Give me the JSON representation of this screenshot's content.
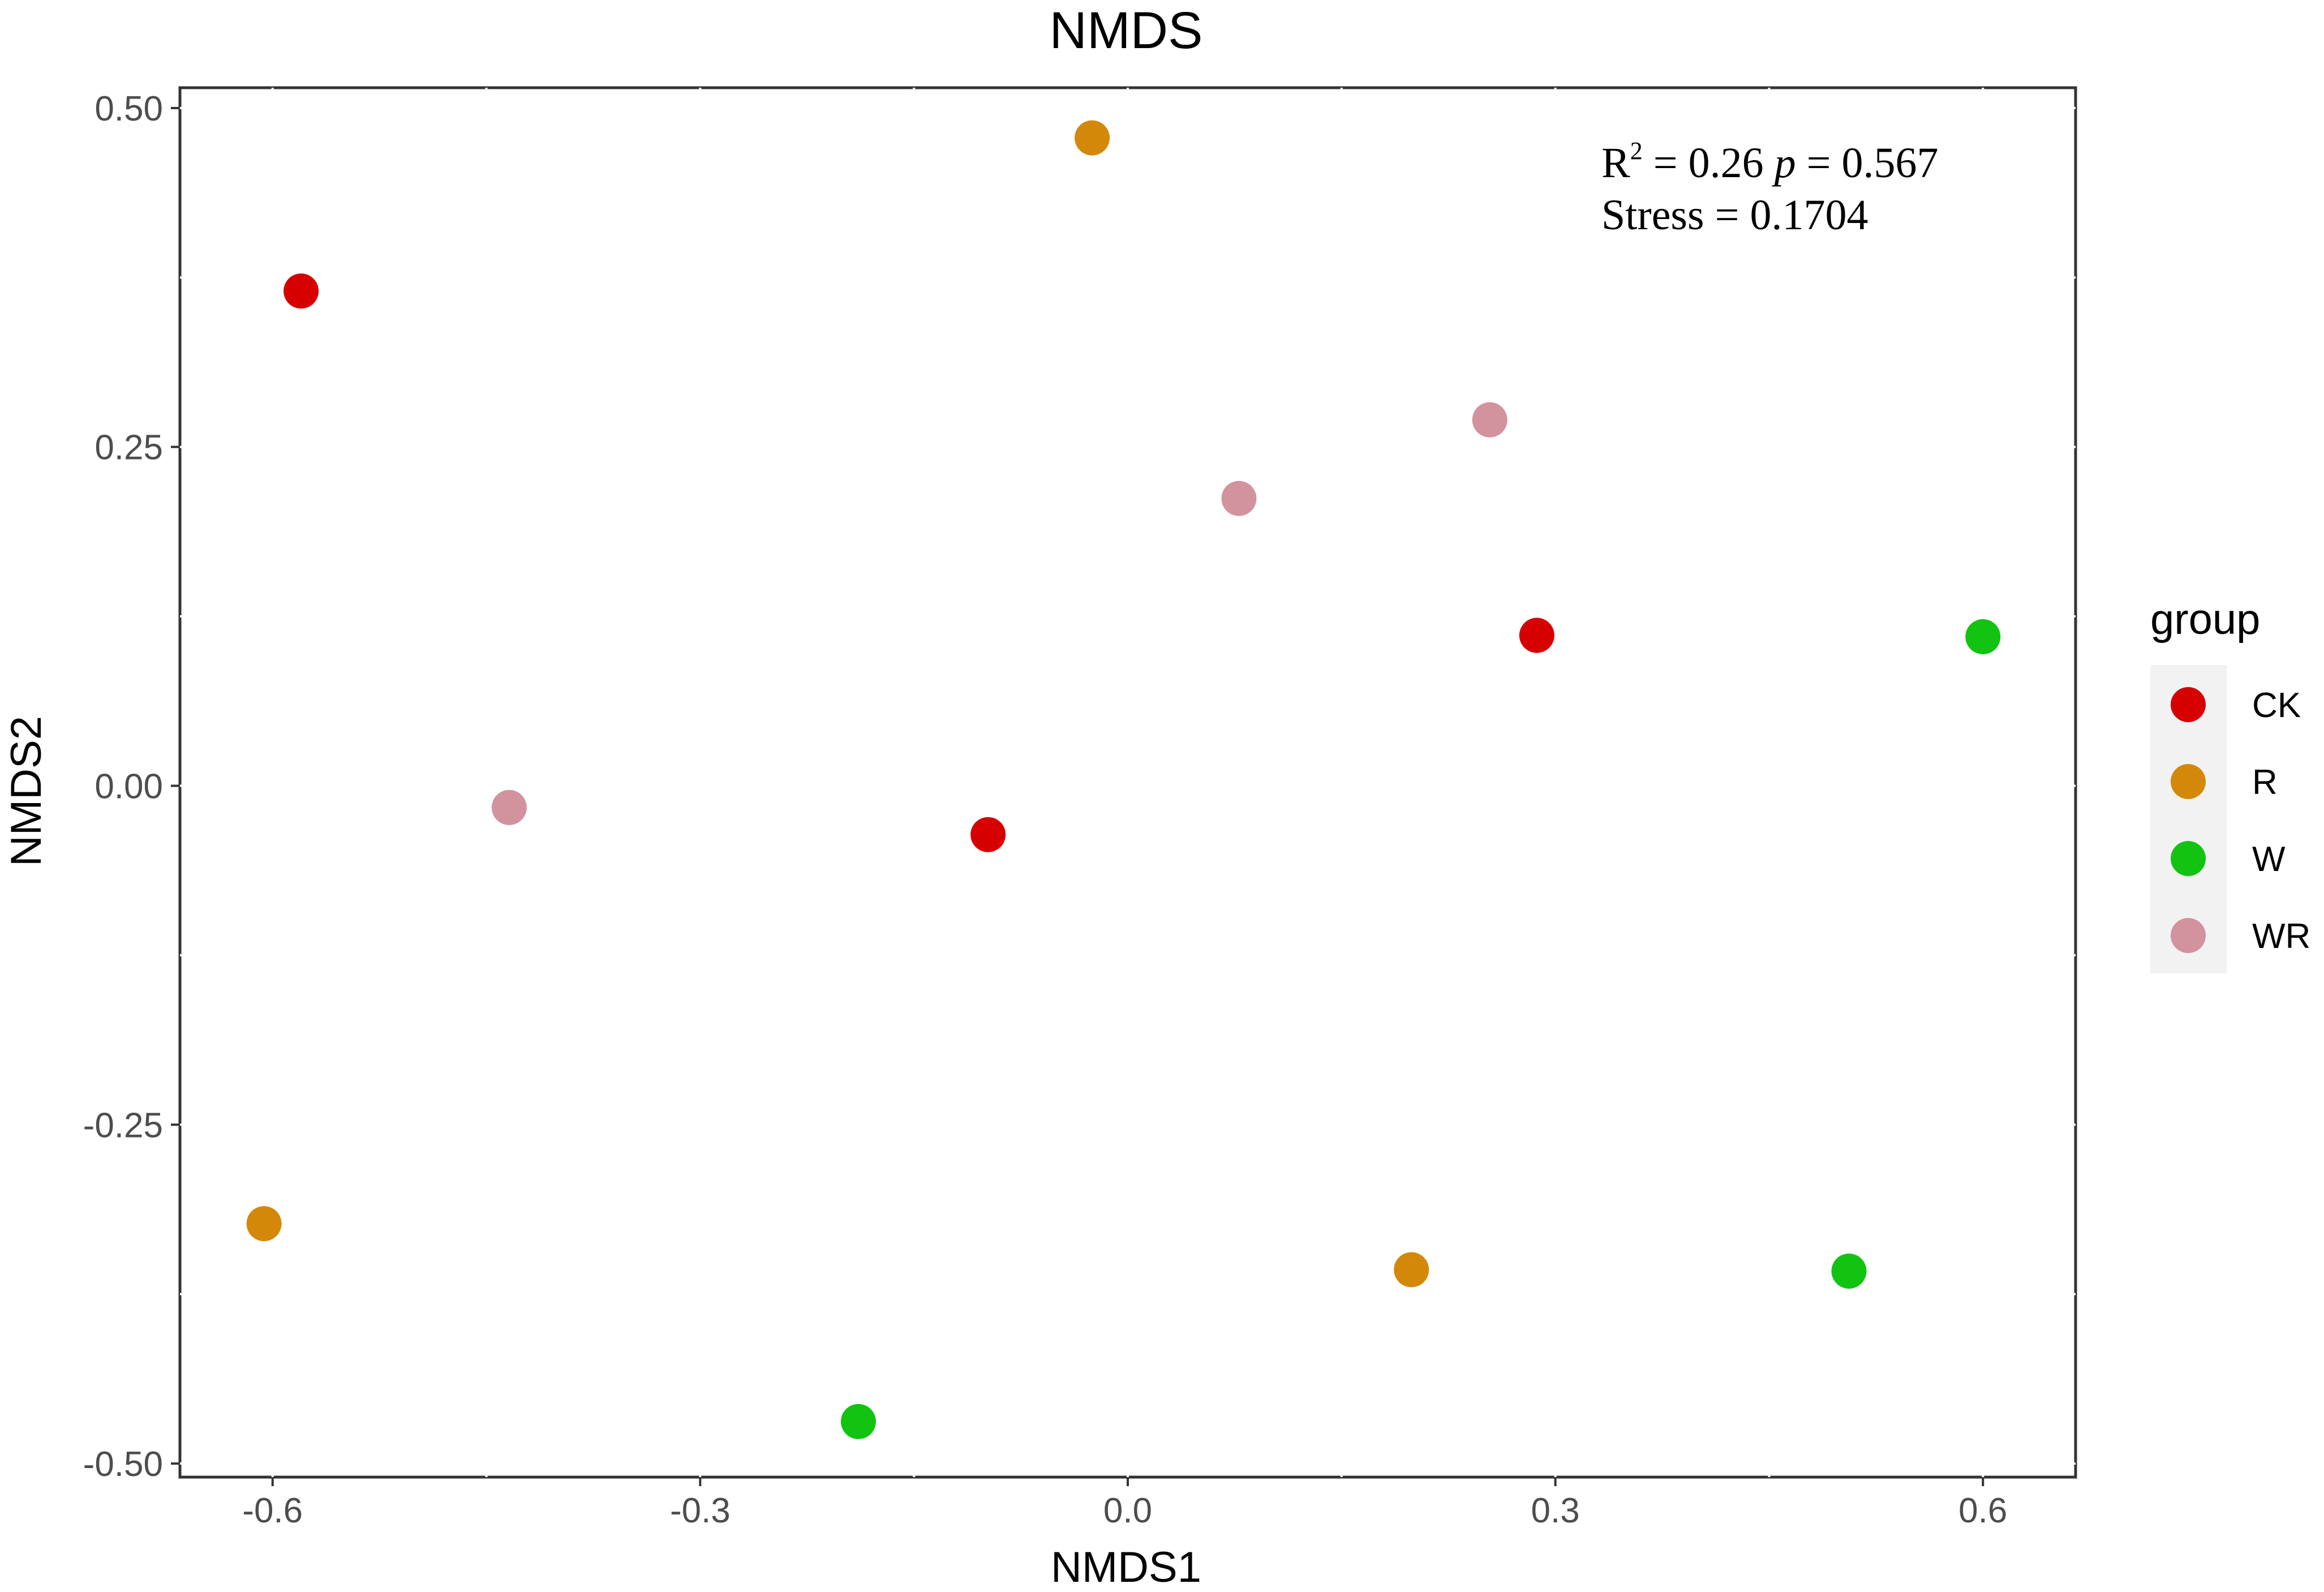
{
  "chart_data": {
    "type": "scatter",
    "title": "NMDS",
    "xlabel": "NMDS1",
    "ylabel": "NMDS2",
    "xlim": [
      -0.665,
      0.665
    ],
    "ylim": [
      -0.51,
      0.515
    ],
    "xticks": [
      -0.6,
      -0.3,
      0.0,
      0.3,
      0.6
    ],
    "xtick_labels": [
      "-0.6",
      "-0.3",
      "0.0",
      "0.3",
      "0.6"
    ],
    "yticks": [
      0.5,
      0.25,
      0.0,
      -0.25,
      -0.5
    ],
    "ytick_labels": [
      "0.50",
      "0.25",
      "0.00",
      "-0.25",
      "-0.50"
    ],
    "grid": true,
    "legend": {
      "title": "group",
      "position": "right"
    },
    "series": [
      {
        "name": "CK",
        "color": "#D60000",
        "points": [
          [
            -0.58,
            0.365
          ],
          [
            -0.098,
            -0.036
          ],
          [
            0.287,
            0.111
          ]
        ]
      },
      {
        "name": "R",
        "color": "#D4880A",
        "points": [
          [
            -0.025,
            0.478
          ],
          [
            -0.606,
            -0.323
          ],
          [
            0.199,
            -0.357
          ]
        ]
      },
      {
        "name": "W",
        "color": "#12C312",
        "points": [
          [
            0.6,
            0.11
          ],
          [
            0.506,
            -0.358
          ],
          [
            -0.189,
            -0.469
          ]
        ]
      },
      {
        "name": "WR",
        "color": "#D2929E",
        "points": [
          [
            0.254,
            0.27
          ],
          [
            0.078,
            0.212
          ],
          [
            -0.434,
            -0.016
          ]
        ]
      }
    ],
    "annotation": {
      "r2_label": "R",
      "r2_superscript": "2",
      "r2_text": " = 0.26 ",
      "p_label": "p",
      "p_text": " = 0.567",
      "stress_text": "Stress = 0.1704"
    }
  }
}
